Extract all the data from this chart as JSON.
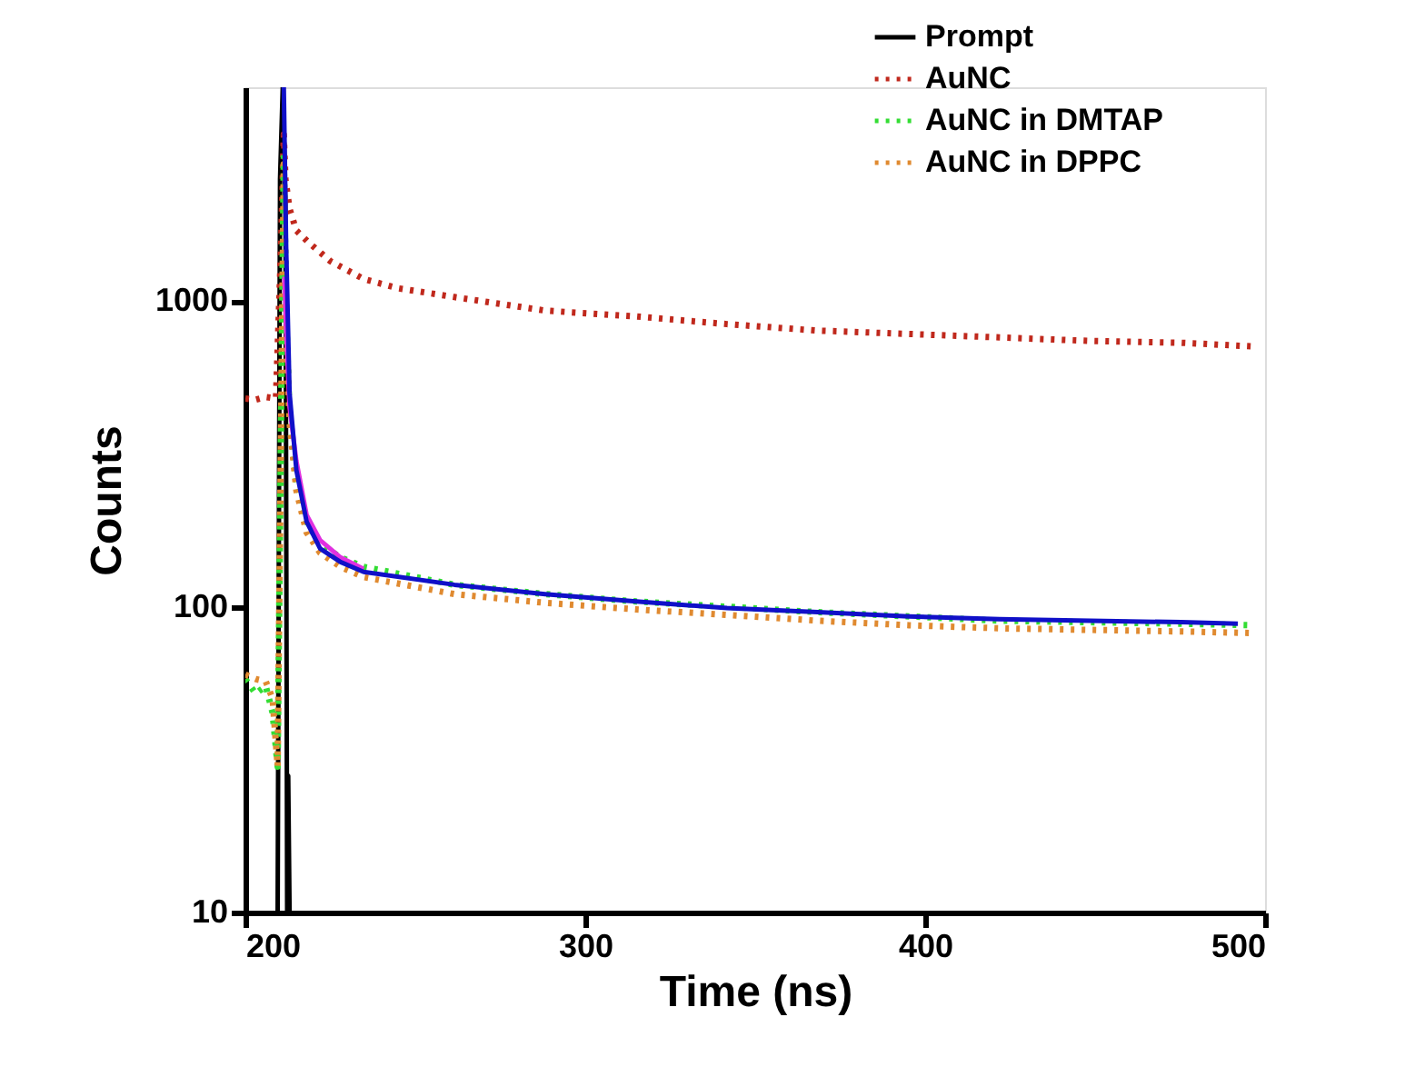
{
  "chart_data": {
    "type": "line",
    "xlabel": "Time (ns)",
    "ylabel": "Counts",
    "log": "y",
    "grid": false,
    "legend": "top right",
    "xlim": [
      200,
      500
    ],
    "xticks": [
      200,
      300,
      400,
      500
    ],
    "ylim": [
      10,
      5000
    ],
    "yticks": [
      10,
      100,
      1000
    ],
    "series": [
      {
        "name": "Prompt",
        "color": "#000000",
        "line_style": "solid",
        "x": [
          209.5,
          210.2,
          211,
          211.8,
          212.3,
          212.6,
          213
        ],
        "values": [
          10,
          2500,
          5000,
          2000,
          10,
          28,
          10
        ]
      },
      {
        "name": "AuNC",
        "color": "#c0281c",
        "line_style": "dotted",
        "x": [
          200,
          203,
          206,
          209,
          210.5,
          211.3,
          211.8,
          213,
          215,
          218.7,
          225,
          234.8,
          245,
          261.5,
          288.2,
          315,
          341.7,
          368.4,
          395.2,
          421.9,
          448.7,
          475.4,
          496.8
        ],
        "values": [
          480,
          475,
          485,
          480,
          1500,
          3500,
          2500,
          2000,
          1700,
          1550,
          1350,
          1180,
          1100,
          1030,
          930,
          890,
          840,
          800,
          780,
          760,
          740,
          730,
          710
        ]
      },
      {
        "name": "AuNC in DMTAP",
        "color": "#33dd33",
        "line_style": "dotted",
        "x": [
          200,
          203,
          206,
          208,
          209.5,
          210.5,
          211.3,
          212,
          213,
          215,
          218,
          222,
          228,
          234.8,
          261.5,
          288.2,
          315,
          341.7,
          368.4,
          395.2,
          421.9,
          448.7,
          475.4,
          496.8
        ],
        "values": [
          58,
          52,
          55,
          45,
          30,
          400,
          3000,
          900,
          420,
          260,
          190,
          160,
          145,
          135,
          118,
          110,
          104,
          100,
          96,
          93,
          90,
          89,
          88,
          87
        ]
      },
      {
        "name": "AuNC in DPPC",
        "color": "#e08a30",
        "line_style": "dotted",
        "x": [
          200,
          203,
          206,
          208,
          209.5,
          210.5,
          211.3,
          212,
          213,
          215,
          218,
          222,
          228,
          234.8,
          261.5,
          288.2,
          315,
          341.7,
          368.4,
          395.2,
          421.9,
          448.7,
          475.4,
          496.8
        ],
        "values": [
          60,
          58,
          57,
          50,
          30,
          380,
          2800,
          850,
          400,
          240,
          175,
          150,
          135,
          125,
          110,
          103,
          98,
          94,
          90,
          87,
          85,
          84,
          83,
          82
        ]
      },
      {
        "color": "#e030e0",
        "line_style": "solid",
        "x": [
          211.5,
          212,
          213,
          215,
          218,
          222,
          228,
          234.8
        ],
        "values": [
          1200,
          800,
          450,
          300,
          200,
          165,
          145,
          133
        ]
      },
      {
        "color": "#1010c8",
        "line_style": "solid",
        "x": [
          211.3,
          212,
          213,
          215,
          218,
          222,
          228,
          234.8,
          261.5,
          288.2,
          315,
          341.7,
          368.4,
          395.2,
          421.9,
          448.7,
          475.4,
          492
        ],
        "values": [
          5000,
          1500,
          500,
          280,
          190,
          155,
          140,
          130,
          118,
          110,
          104,
          99,
          96,
          93,
          91,
          90,
          89,
          88
        ]
      }
    ]
  }
}
